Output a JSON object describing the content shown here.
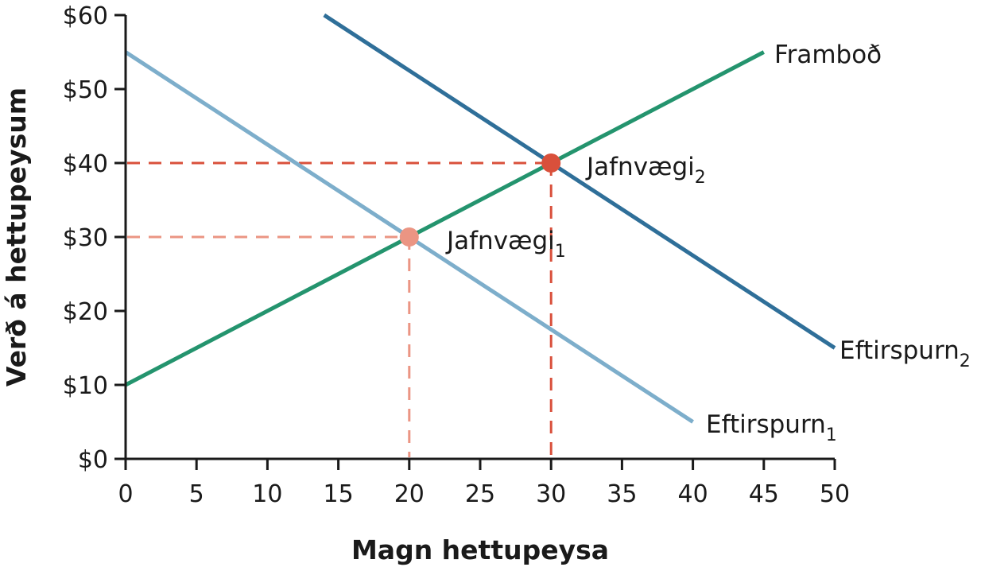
{
  "chart_data": {
    "type": "line",
    "title": "",
    "xlabel": "Magn hettupeysa",
    "ylabel": "Verð á hettupeysum",
    "xlim": [
      0,
      50
    ],
    "ylim": [
      0,
      60
    ],
    "x_ticks": [
      0,
      5,
      10,
      15,
      20,
      25,
      30,
      35,
      40,
      45,
      50
    ],
    "x_tick_labels": [
      "0",
      "5",
      "10",
      "15",
      "20",
      "25",
      "30",
      "35",
      "40",
      "45",
      "50"
    ],
    "y_ticks": [
      0,
      10,
      20,
      30,
      40,
      50,
      60
    ],
    "y_tick_labels": [
      "$0",
      "$10",
      "$20",
      "$30",
      "$40",
      "$50",
      "$60"
    ],
    "grid": false,
    "series": [
      {
        "name": "Framboð",
        "label_main": "Framboð",
        "label_sub": "",
        "color": "#24946e",
        "points": [
          [
            0,
            10
          ],
          [
            45,
            55
          ]
        ]
      },
      {
        "name": "Eftirspurn1",
        "label_main": "Eftirspurn",
        "label_sub": "1",
        "color": "#7daecb",
        "points": [
          [
            0,
            55
          ],
          [
            40,
            5
          ]
        ]
      },
      {
        "name": "Eftirspurn2",
        "label_main": "Eftirspurn",
        "label_sub": "2",
        "color": "#2f6f99",
        "points": [
          [
            14,
            60
          ],
          [
            50,
            15
          ]
        ]
      }
    ],
    "equilibria": [
      {
        "label_main": "Jafnvægi",
        "label_sub": "1",
        "x": 20,
        "y": 30,
        "color": "#eb9583"
      },
      {
        "label_main": "Jafnvægi",
        "label_sub": "2",
        "x": 30,
        "y": 40,
        "color": "#d9503b"
      }
    ]
  }
}
